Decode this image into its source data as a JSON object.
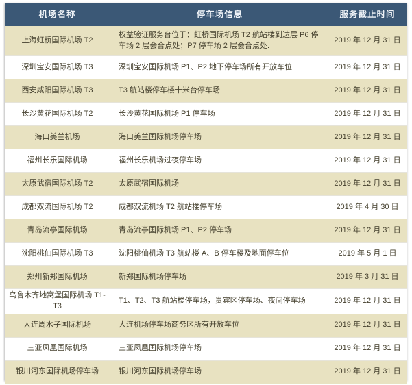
{
  "table": {
    "header": {
      "airport": "机场名称",
      "parking_info": "停车场信息",
      "deadline": "服务截止时间"
    },
    "rows": [
      {
        "airport": "上海虹桥国际机场 T2",
        "info": "权益验证服务台位于：虹桥国际机场 T2 航站楼到达层 P6 停车场 2 层会合点处；P7 停车场 2 层会合点处.",
        "deadline": "2019 年 12 月 31 日"
      },
      {
        "airport": "深圳宝安国际机场 T3",
        "info": "深圳宝安国际机场 P1、P2 地下停车场所有开放车位",
        "deadline": "2019 年 12 月 31 日"
      },
      {
        "airport": "西安咸阳国际机场 T3",
        "info": "T3 航站楼停车楼十米台停车场",
        "deadline": "2019 年 12 月 31 日"
      },
      {
        "airport": "长沙黄花国际机场 T2",
        "info": "长沙黄花国际机场 P1 停车场",
        "deadline": "2019 年 12 月 31 日"
      },
      {
        "airport": "海口美兰机场",
        "info": "海口美兰国际机场停车场",
        "deadline": "2019 年 12 月 31 日"
      },
      {
        "airport": "福州长乐国际机场",
        "info": "福州长乐机场过夜停车场",
        "deadline": "2019 年 12 月 31 日"
      },
      {
        "airport": "太原武宿国际机场 T2",
        "info": "太原武宿国际机场",
        "deadline": "2019 年 12 月 31 日"
      },
      {
        "airport": "成都双流国际机场 T2",
        "info": "成都双流机场 T2 航站楼停车场",
        "deadline": "2019 年 4 月 30 日"
      },
      {
        "airport": "青岛流亭国际机场",
        "info": "青岛流亭国际机场 P1、P2 停车场",
        "deadline": "2019 年 12 月 31 日"
      },
      {
        "airport": "沈阳桃仙国际机场 T3",
        "info": "沈阳桃仙机场 T3 航站楼 A、B 停车楼及地面停车位",
        "deadline": "2019 年 5 月 1 日"
      },
      {
        "airport": "郑州新郑国际机场",
        "info": "新郑国际机场停车场",
        "deadline": "2019 年 3 月 31 日"
      },
      {
        "airport": "乌鲁木齐地窝堡国际机场 T1-T3",
        "info": "T1、T2、T3 航站楼停车场，贵宾区停车场、夜间停车场",
        "deadline": "2019 年 12 月 31 日"
      },
      {
        "airport": "大连周水子国际机场",
        "info": "大连机场停车场商务区所有开放车位",
        "deadline": "2019 年 12 月 31 日"
      },
      {
        "airport": "三亚凤凰国际机场",
        "info": "三亚凤凰国际机场停车场",
        "deadline": "2019 年 12 月 31 日"
      },
      {
        "airport": "银川河东国际机场停车场",
        "info": "银川河东国际机场停车场",
        "deadline": "2019 年 12 月 31 日"
      }
    ]
  },
  "colors": {
    "header_bg": "#3b5876",
    "header_text": "#eef2f7",
    "row_alt_bg": "#e8e2c1",
    "row_bg": "#ffffff",
    "body_text": "#45402e"
  }
}
